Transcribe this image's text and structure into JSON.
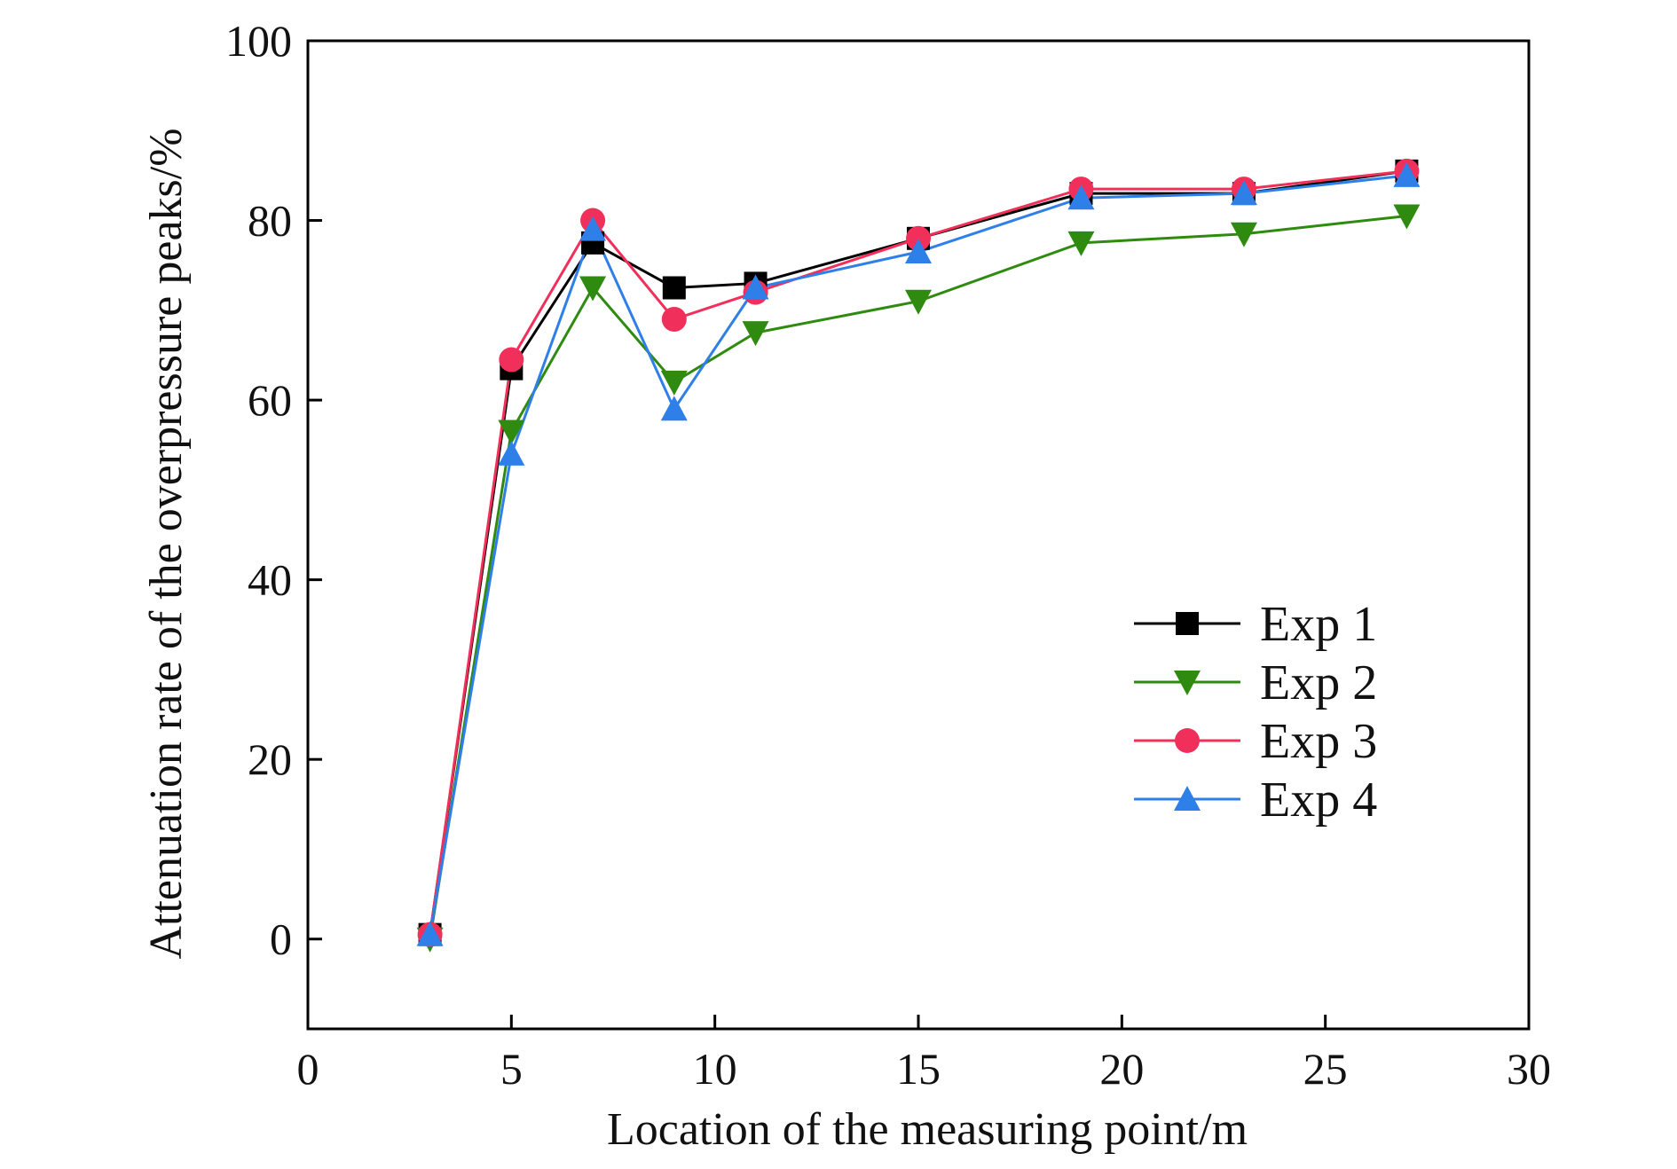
{
  "chart_data": {
    "type": "line",
    "title": "",
    "xlabel": "Location of the measuring point/m",
    "ylabel": "Attenuation rate of the overpressure peaks/%",
    "xlim": [
      0,
      30
    ],
    "ylim": [
      -10,
      100
    ],
    "xticks": [
      0,
      5,
      10,
      15,
      20,
      25,
      30
    ],
    "yticks": [
      0,
      20,
      40,
      60,
      80,
      100
    ],
    "grid": false,
    "legend_position": "center-right",
    "x": [
      3,
      5,
      7,
      9,
      11,
      15,
      19,
      23,
      27
    ],
    "series": [
      {
        "name": "Exp 1",
        "color": "#000000",
        "marker": "square",
        "values": [
          0.5,
          63.5,
          77.5,
          72.5,
          73.0,
          78.0,
          83.0,
          83.0,
          85.5
        ]
      },
      {
        "name": "Exp 2",
        "color": "#2e8b10",
        "marker": "triangle-down",
        "values": [
          0.0,
          56.5,
          72.5,
          62.0,
          67.5,
          71.0,
          77.5,
          78.5,
          80.5
        ]
      },
      {
        "name": "Exp 3",
        "color": "#f0305a",
        "marker": "circle",
        "values": [
          0.5,
          64.5,
          80.0,
          69.0,
          72.0,
          78.0,
          83.5,
          83.5,
          85.5
        ]
      },
      {
        "name": "Exp 4",
        "color": "#2f7fe8",
        "marker": "triangle-up",
        "values": [
          0.5,
          54.0,
          79.0,
          59.0,
          72.5,
          76.5,
          82.5,
          83.0,
          85.0
        ]
      }
    ]
  }
}
